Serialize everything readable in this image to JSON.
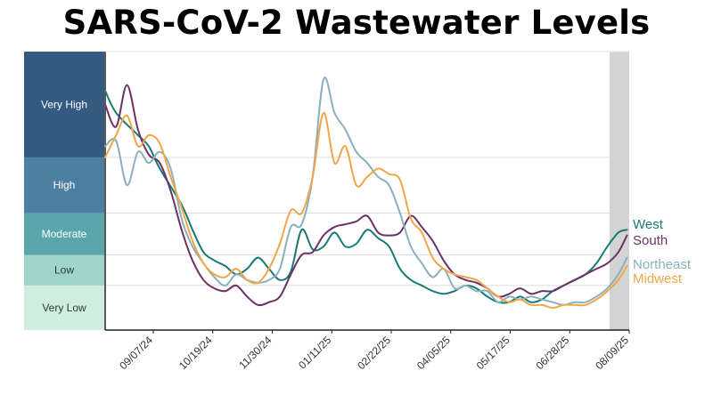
{
  "chart_data": {
    "type": "line",
    "title": "SARS-CoV-2 Wastewater Levels",
    "xlabel": "",
    "ylabel": "",
    "x_ticks": [
      "09/07/24",
      "10/19/24",
      "11/30/24",
      "01/11/25",
      "02/22/25",
      "04/05/25",
      "05/17/25",
      "06/28/25",
      "08/09/25"
    ],
    "x_range": [
      -3,
      45
    ],
    "ylim": [
      0,
      100
    ],
    "grid": true,
    "shaded_recent_period": true,
    "levels": [
      {
        "name": "Very High",
        "from": 62,
        "to": 100,
        "color": "#355a80",
        "text_color": "#ffffff"
      },
      {
        "name": "High",
        "from": 42,
        "to": 62,
        "color": "#4d7fa0",
        "text_color": "#ffffff"
      },
      {
        "name": "Moderate",
        "from": 27,
        "to": 42,
        "color": "#5aa6ab",
        "text_color": "#ffffff"
      },
      {
        "name": "Low",
        "from": 16,
        "to": 27,
        "color": "#9fd6c9",
        "text_color": "#2a3a3a"
      },
      {
        "name": "Very Low",
        "from": 0,
        "to": 16,
        "color": "#cfeedd",
        "text_color": "#2a3a3a"
      }
    ],
    "series": [
      {
        "name": "West",
        "color": "#177a74",
        "label_color": "#177a74",
        "values": [
          [
            -3,
            86
          ],
          [
            -2,
            78
          ],
          [
            0,
            70
          ],
          [
            1,
            66
          ],
          [
            2,
            58
          ],
          [
            4,
            45
          ],
          [
            5,
            36
          ],
          [
            6,
            28
          ],
          [
            7,
            25
          ],
          [
            8,
            23
          ],
          [
            9,
            20
          ],
          [
            10,
            22
          ],
          [
            11,
            26
          ],
          [
            12,
            22
          ],
          [
            13,
            18
          ],
          [
            14,
            21
          ],
          [
            15,
            36
          ],
          [
            16,
            29
          ],
          [
            17,
            30
          ],
          [
            18,
            35
          ],
          [
            19,
            30
          ],
          [
            20,
            31
          ],
          [
            21,
            36
          ],
          [
            22,
            33
          ],
          [
            23,
            30
          ],
          [
            24,
            22
          ],
          [
            25,
            18
          ],
          [
            26,
            16
          ],
          [
            27,
            14
          ],
          [
            28,
            13
          ],
          [
            29,
            14
          ],
          [
            30,
            16
          ],
          [
            31,
            15
          ],
          [
            32,
            12
          ],
          [
            33,
            10
          ],
          [
            34,
            10
          ],
          [
            35,
            12
          ],
          [
            36,
            10
          ],
          [
            37,
            11
          ],
          [
            38,
            14
          ],
          [
            39,
            16
          ],
          [
            40,
            18
          ],
          [
            41,
            20
          ],
          [
            42,
            24
          ],
          [
            43,
            30
          ],
          [
            44,
            35
          ],
          [
            44.8,
            36
          ]
        ]
      },
      {
        "name": "South",
        "color": "#6c3266",
        "label_color": "#6c3266",
        "values": [
          [
            -3,
            81
          ],
          [
            -2,
            73
          ],
          [
            -1,
            88
          ],
          [
            0,
            72
          ],
          [
            1,
            63
          ],
          [
            2,
            60
          ],
          [
            3,
            50
          ],
          [
            4,
            36
          ],
          [
            5,
            25
          ],
          [
            6,
            18
          ],
          [
            7,
            15
          ],
          [
            8,
            14
          ],
          [
            9,
            16
          ],
          [
            10,
            12
          ],
          [
            11,
            9
          ],
          [
            12,
            10
          ],
          [
            13,
            12
          ],
          [
            14,
            20
          ],
          [
            15,
            27
          ],
          [
            16,
            28
          ],
          [
            17,
            34
          ],
          [
            18,
            37
          ],
          [
            19,
            38
          ],
          [
            20,
            39
          ],
          [
            21,
            41
          ],
          [
            22,
            35
          ],
          [
            23,
            34
          ],
          [
            24,
            35
          ],
          [
            25,
            41
          ],
          [
            26,
            37
          ],
          [
            27,
            32
          ],
          [
            28,
            25
          ],
          [
            29,
            20
          ],
          [
            30,
            18
          ],
          [
            31,
            17
          ],
          [
            32,
            15
          ],
          [
            33,
            12
          ],
          [
            34,
            13
          ],
          [
            35,
            15
          ],
          [
            36,
            13
          ],
          [
            37,
            14
          ],
          [
            38,
            14
          ],
          [
            39,
            16
          ],
          [
            40,
            18
          ],
          [
            41,
            20
          ],
          [
            42,
            22
          ],
          [
            43,
            24
          ],
          [
            44,
            28
          ],
          [
            44.8,
            34
          ]
        ]
      },
      {
        "name": "Northeast",
        "color": "#8ab0bd",
        "label_color": "#8ab0bd",
        "values": [
          [
            -3,
            66
          ],
          [
            -2,
            68
          ],
          [
            -1,
            52
          ],
          [
            0,
            64
          ],
          [
            1,
            60
          ],
          [
            2,
            64
          ],
          [
            3,
            58
          ],
          [
            4,
            40
          ],
          [
            5,
            30
          ],
          [
            6,
            24
          ],
          [
            7,
            19
          ],
          [
            8,
            16
          ],
          [
            9,
            20
          ],
          [
            10,
            18
          ],
          [
            11,
            17
          ],
          [
            12,
            18
          ],
          [
            13,
            22
          ],
          [
            14,
            37
          ],
          [
            15,
            38
          ],
          [
            16,
            55
          ],
          [
            17,
            90
          ],
          [
            18,
            78
          ],
          [
            19,
            72
          ],
          [
            20,
            64
          ],
          [
            21,
            60
          ],
          [
            22,
            55
          ],
          [
            23,
            52
          ],
          [
            24,
            42
          ],
          [
            25,
            30
          ],
          [
            26,
            24
          ],
          [
            27,
            19
          ],
          [
            28,
            22
          ],
          [
            29,
            15
          ],
          [
            30,
            16
          ],
          [
            31,
            14
          ],
          [
            32,
            14
          ],
          [
            33,
            10
          ],
          [
            34,
            12
          ],
          [
            35,
            11
          ],
          [
            36,
            12
          ],
          [
            37,
            11
          ],
          [
            38,
            10
          ],
          [
            39,
            9
          ],
          [
            40,
            10
          ],
          [
            41,
            10
          ],
          [
            42,
            12
          ],
          [
            43,
            15
          ],
          [
            44,
            20
          ],
          [
            44.8,
            26
          ]
        ]
      },
      {
        "name": "Midwest",
        "color": "#f0a649",
        "label_color": "#f0a649",
        "values": [
          [
            -3,
            62
          ],
          [
            -2,
            70
          ],
          [
            -1,
            77
          ],
          [
            0,
            66
          ],
          [
            1,
            70
          ],
          [
            2,
            67
          ],
          [
            3,
            55
          ],
          [
            4,
            44
          ],
          [
            5,
            32
          ],
          [
            6,
            24
          ],
          [
            7,
            20
          ],
          [
            8,
            19
          ],
          [
            9,
            22
          ],
          [
            10,
            18
          ],
          [
            11,
            17
          ],
          [
            12,
            22
          ],
          [
            13,
            31
          ],
          [
            14,
            43
          ],
          [
            15,
            42
          ],
          [
            16,
            55
          ],
          [
            17,
            78
          ],
          [
            18,
            60
          ],
          [
            19,
            66
          ],
          [
            20,
            52
          ],
          [
            21,
            55
          ],
          [
            22,
            58
          ],
          [
            23,
            56
          ],
          [
            24,
            54
          ],
          [
            25,
            40
          ],
          [
            26,
            35
          ],
          [
            27,
            26
          ],
          [
            28,
            22
          ],
          [
            29,
            20
          ],
          [
            30,
            19
          ],
          [
            31,
            18
          ],
          [
            32,
            15
          ],
          [
            33,
            12
          ],
          [
            34,
            10
          ],
          [
            35,
            11
          ],
          [
            36,
            9
          ],
          [
            37,
            9
          ],
          [
            38,
            8
          ],
          [
            39,
            9
          ],
          [
            40,
            9
          ],
          [
            41,
            9
          ],
          [
            42,
            11
          ],
          [
            43,
            14
          ],
          [
            44,
            18
          ],
          [
            44.8,
            23
          ]
        ]
      }
    ]
  }
}
